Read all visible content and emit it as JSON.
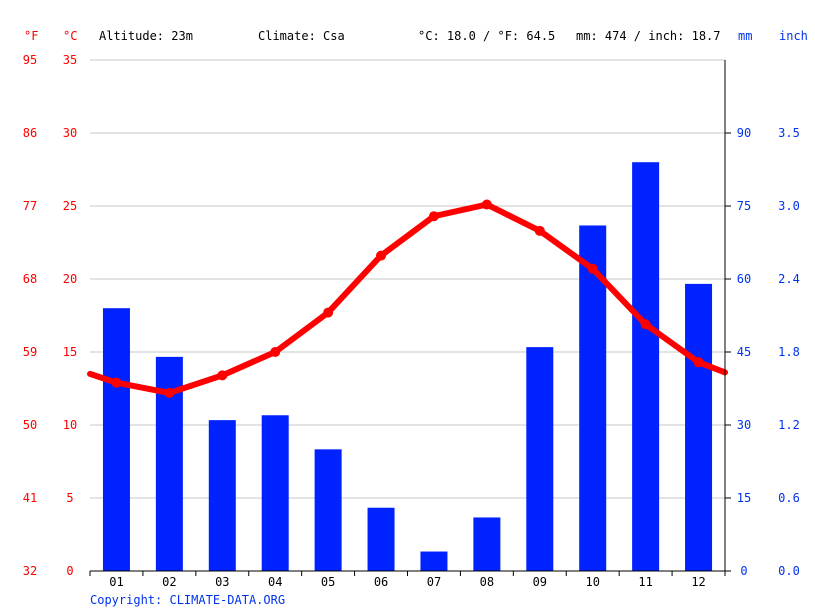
{
  "header": {
    "unit_f": "°F",
    "unit_c": "°C",
    "altitude": "Altitude: 23m",
    "climate": "Climate: Csa",
    "avg_temp": "°C: 18.0 / °F: 64.5",
    "precip_total": "mm: 474 / inch: 18.7",
    "unit_mm": "mm",
    "unit_inch": "inch"
  },
  "footer": {
    "copyright": "Copyright: CLIMATE-DATA.ORG"
  },
  "colors": {
    "temperature": "#ff0000",
    "precipitation": "#0022ff",
    "grid": "#c8c8c8",
    "axis": "#000000"
  },
  "chart_data": {
    "type": "bar",
    "categories": [
      "01",
      "02",
      "03",
      "04",
      "05",
      "06",
      "07",
      "08",
      "09",
      "10",
      "11",
      "12"
    ],
    "series": [
      {
        "type": "bar",
        "axis": "right",
        "values": [
          54,
          44,
          31,
          32,
          25,
          13,
          4,
          11,
          46,
          71,
          84,
          59
        ]
      },
      {
        "type": "line",
        "axis": "left",
        "values": [
          12.9,
          12.2,
          13.4,
          15.0,
          17.7,
          21.6,
          24.3,
          25.1,
          23.3,
          20.7,
          16.9,
          14.3
        ],
        "edge_values": [
          13.5,
          13.6
        ]
      }
    ],
    "left_axis": {
      "celsius_ticks": [
        "0",
        "5",
        "10",
        "15",
        "20",
        "25",
        "30",
        "35"
      ],
      "fahrenheit_ticks": [
        "32",
        "41",
        "50",
        "59",
        "68",
        "77",
        "86",
        "95"
      ],
      "range": [
        0,
        35
      ]
    },
    "right_axis": {
      "mm_ticks": [
        "0",
        "15",
        "30",
        "45",
        "60",
        "75",
        "90"
      ],
      "inch_ticks": [
        "0.0",
        "0.6",
        "1.2",
        "1.8",
        "2.4",
        "3.0",
        "3.5"
      ],
      "range": [
        0,
        105
      ]
    },
    "grid": true,
    "legend": "none"
  }
}
